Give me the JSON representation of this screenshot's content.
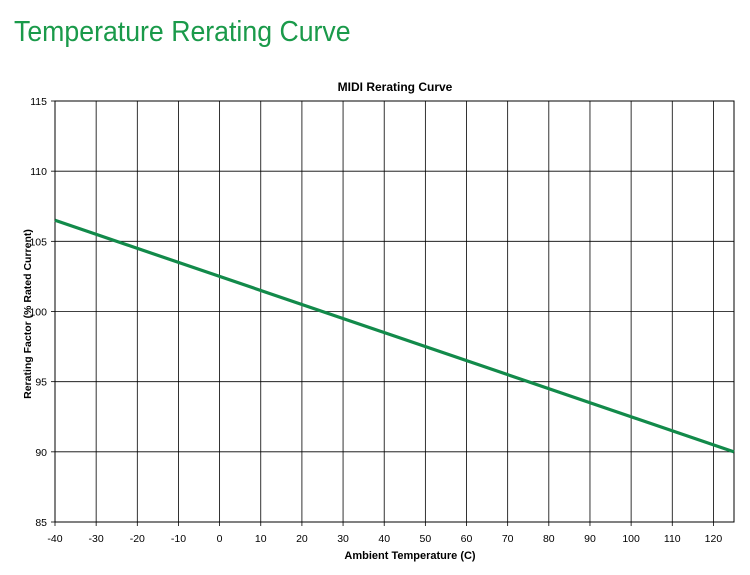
{
  "page": {
    "heading": "Temperature Rerating Curve"
  },
  "chart_data": {
    "type": "line",
    "title": "MIDI Rerating Curve",
    "xlabel": "Ambient Temperature (C)",
    "ylabel": "Rerating Factor (% Rated Current)",
    "xlim": [
      -40,
      125
    ],
    "ylim": [
      85,
      115
    ],
    "xticks": [
      -40,
      -30,
      -20,
      -10,
      0,
      10,
      20,
      30,
      40,
      50,
      60,
      70,
      80,
      90,
      100,
      110,
      120
    ],
    "yticks": [
      85,
      90,
      95,
      100,
      105,
      110,
      115
    ],
    "grid": true,
    "series": [
      {
        "x": [
          -40,
          125
        ],
        "y": [
          106.5,
          90
        ],
        "color": "#128a4a"
      }
    ]
  }
}
